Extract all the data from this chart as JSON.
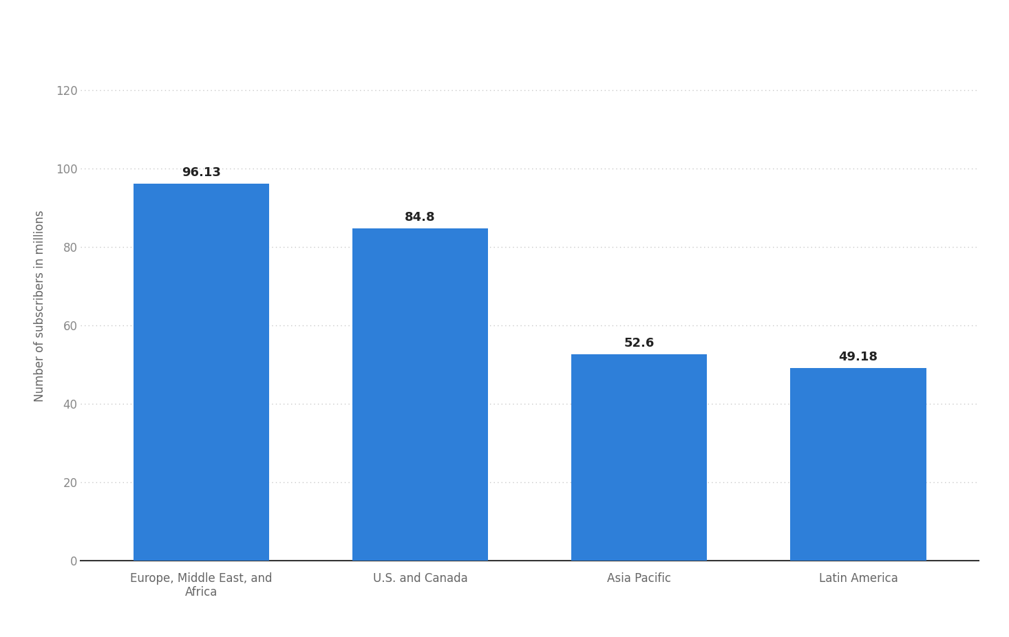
{
  "categories": [
    "Europe, Middle East, and\nAfrica",
    "U.S. and Canada",
    "Asia Pacific",
    "Latin America"
  ],
  "values": [
    96.13,
    84.8,
    52.6,
    49.18
  ],
  "bar_color": "#2E7FD9",
  "ylabel": "Number of subscribers in millions",
  "ylim": [
    0,
    130
  ],
  "yticks": [
    0,
    20,
    40,
    60,
    80,
    100,
    120
  ],
  "background_color": "#ffffff",
  "plot_background_color": "#ffffff",
  "grid_color": "#c8c8c8",
  "label_fontsize": 12,
  "value_fontsize": 13,
  "tick_fontsize": 12,
  "bar_width": 0.62
}
